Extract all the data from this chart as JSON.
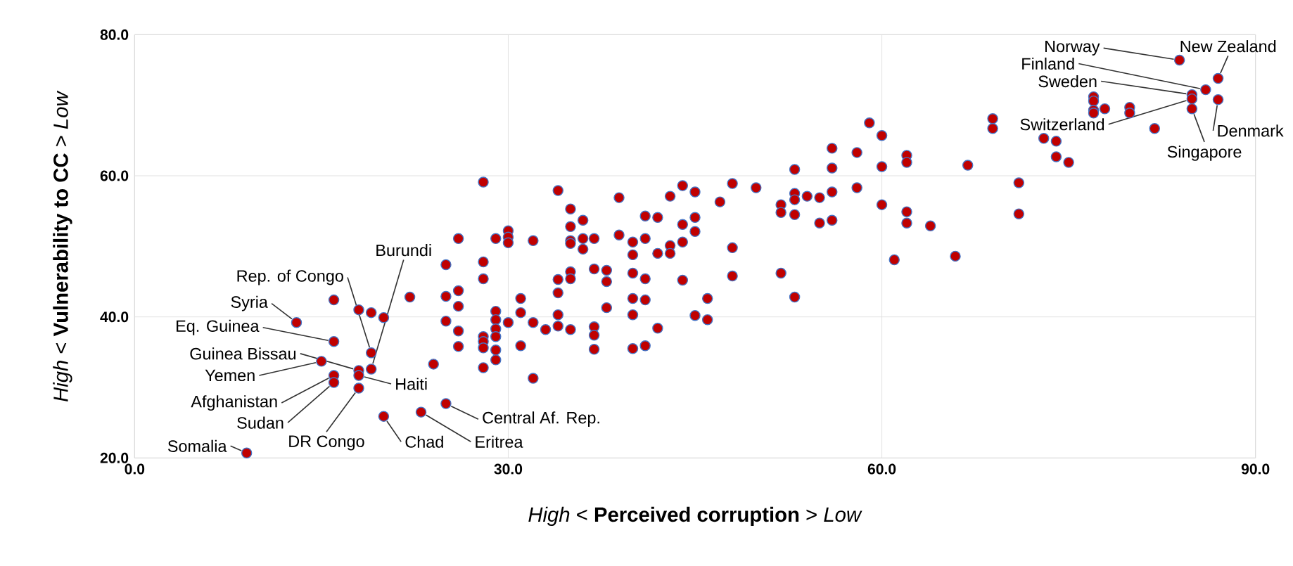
{
  "chart_data": {
    "type": "scatter",
    "xlabel": "*High* < **Perceived corruption** > *Low*",
    "ylabel": "*High* < **Vulnerability to CC** > *Low*",
    "xlim": [
      0,
      90
    ],
    "ylim": [
      20,
      80
    ],
    "xticks": [
      {
        "value": 0,
        "label": "0.0"
      },
      {
        "value": 30,
        "label": "30.0"
      },
      {
        "value": 60,
        "label": "60.0"
      },
      {
        "value": 90,
        "label": "90.0"
      }
    ],
    "yticks": [
      {
        "value": 20,
        "label": "20.0"
      },
      {
        "value": 40,
        "label": "40.0"
      },
      {
        "value": 60,
        "label": "60.0"
      },
      {
        "value": 80,
        "label": "80.0"
      }
    ],
    "grid": true,
    "marker": "circle",
    "color": "#c00000",
    "x": [
      9.0,
      13.0,
      16.0,
      15.0,
      16.0,
      16.0,
      18.0,
      18.0,
      18.0,
      19.0,
      19.0,
      20.0,
      23.0,
      25.0,
      16.0,
      18.0,
      19.0,
      20.0,
      22.1,
      24.0,
      25.0,
      28.0,
      28.0,
      25.0,
      26.0,
      26.0,
      25.0,
      26.0,
      26.0,
      28.0,
      28.0,
      28.0,
      28.0,
      29.0,
      29.0,
      29.0,
      29.0,
      29.0,
      29.0,
      30.0,
      31.0,
      31.0,
      32.0,
      31.0,
      32.0,
      33.0,
      34.0,
      34.0,
      34.0,
      34.0,
      35.0,
      35.0,
      35.0,
      36.9,
      36.9,
      36.9,
      36.9,
      37.9,
      37.9,
      37.9,
      40.0,
      40.0,
      40.0,
      40.0,
      41.0,
      41.0,
      41.0,
      42.0,
      44.0,
      45.0,
      46.0,
      46.0,
      48.0,
      51.9,
      53.0,
      61.0,
      30.0,
      30.0,
      30.0,
      32.0,
      34.0,
      35.0,
      35.0,
      35.0,
      35.0,
      36.0,
      36.0,
      36.0,
      36.9,
      38.9,
      38.9,
      40.0,
      40.0,
      41.0,
      41.0,
      42.0,
      42.0,
      43.0,
      43.0,
      43.0,
      44.0,
      44.0,
      44.0,
      45.0,
      45.0,
      45.0,
      47.0,
      48.0,
      48.0,
      49.9,
      51.9,
      51.9,
      53.0,
      53.0,
      53.0,
      53.0,
      54.0,
      55.0,
      55.0,
      56.0,
      56.0,
      56.0,
      56.0,
      58.0,
      58.0,
      59.0,
      60.0,
      60.0,
      60.0,
      28.0,
      26.0,
      29.0,
      62.0,
      62.0,
      62.0,
      62.0,
      63.9,
      65.9,
      66.9,
      68.9,
      68.9,
      71.0,
      71.0,
      73.0,
      74.0,
      74.0,
      75.0,
      77.0,
      77.0,
      77.0,
      77.0,
      77.9,
      79.9,
      79.9,
      81.9,
      83.9,
      86.0,
      84.9,
      84.9,
      87.0,
      87.0,
      84.9
    ],
    "values": [
      20.7,
      39.2,
      36.5,
      33.7,
      31.7,
      30.7,
      32.4,
      31.7,
      29.9,
      34.9,
      32.6,
      25.9,
      26.5,
      27.7,
      42.4,
      41.0,
      40.6,
      39.9,
      42.8,
      33.3,
      47.4,
      47.8,
      45.4,
      42.9,
      43.7,
      41.5,
      39.4,
      38.0,
      35.8,
      37.2,
      36.5,
      35.6,
      32.8,
      40.8,
      39.6,
      38.3,
      37.2,
      35.3,
      33.9,
      39.2,
      42.6,
      40.6,
      39.2,
      35.9,
      31.3,
      38.2,
      45.3,
      43.4,
      40.3,
      38.7,
      46.4,
      45.4,
      38.2,
      46.8,
      38.6,
      37.4,
      35.4,
      46.6,
      45.0,
      41.3,
      46.2,
      42.6,
      40.3,
      35.5,
      45.4,
      42.4,
      35.9,
      38.4,
      45.2,
      40.2,
      42.6,
      39.6,
      45.8,
      46.2,
      42.8,
      48.1,
      52.2,
      51.3,
      50.5,
      50.8,
      57.9,
      55.3,
      52.8,
      50.8,
      50.4,
      53.7,
      51.1,
      49.6,
      51.1,
      56.9,
      51.6,
      50.6,
      48.8,
      54.3,
      51.1,
      54.1,
      49.0,
      57.1,
      50.1,
      49.0,
      58.6,
      53.1,
      50.6,
      57.7,
      54.1,
      52.1,
      56.3,
      58.9,
      49.8,
      58.3,
      55.9,
      54.8,
      60.9,
      57.5,
      56.6,
      54.5,
      57.1,
      56.9,
      53.3,
      63.9,
      61.1,
      57.7,
      53.7,
      63.3,
      58.3,
      67.5,
      65.7,
      61.3,
      55.9,
      59.1,
      51.1,
      51.1,
      62.9,
      61.9,
      54.9,
      53.3,
      52.9,
      48.6,
      61.5,
      68.1,
      66.7,
      59.0,
      54.6,
      65.3,
      64.9,
      62.7,
      61.9,
      71.2,
      70.6,
      69.3,
      68.9,
      69.5,
      69.7,
      68.9,
      66.7,
      76.4,
      72.2,
      71.5,
      70.9,
      73.8,
      70.8,
      69.5
    ],
    "annotations": [
      {
        "text": "Somalia",
        "x": 9.0,
        "y": 20.7
      },
      {
        "text": "Syria",
        "x": 13.0,
        "y": 39.2
      },
      {
        "text": "Eq. Guinea",
        "x": 16.0,
        "y": 36.5
      },
      {
        "text": "Guinea Bissau",
        "x": 18.0,
        "y": 32.4
      },
      {
        "text": "Yemen",
        "x": 15.0,
        "y": 33.7
      },
      {
        "text": "Afghanistan",
        "x": 16.0,
        "y": 31.7
      },
      {
        "text": "Sudan",
        "x": 16.0,
        "y": 30.7
      },
      {
        "text": "DR Congo",
        "x": 18.0,
        "y": 29.9
      },
      {
        "text": "Haiti",
        "x": 18.0,
        "y": 31.7
      },
      {
        "text": "Rep. of Congo",
        "x": 19.0,
        "y": 34.9
      },
      {
        "text": "Burundi",
        "x": 19.0,
        "y": 32.6
      },
      {
        "text": "Chad",
        "x": 20.0,
        "y": 25.9
      },
      {
        "text": "Eritrea",
        "x": 23.0,
        "y": 26.5
      },
      {
        "text": "Central Af. Rep.",
        "x": 25.0,
        "y": 27.7
      },
      {
        "text": "Norway",
        "x": 83.9,
        "y": 76.4
      },
      {
        "text": "New Zealand",
        "x": 87.0,
        "y": 73.8
      },
      {
        "text": "Finland",
        "x": 86.0,
        "y": 72.2
      },
      {
        "text": "Sweden",
        "x": 84.9,
        "y": 71.5
      },
      {
        "text": "Switzerland",
        "x": 84.9,
        "y": 70.9
      },
      {
        "text": "Denmark",
        "x": 87.0,
        "y": 70.8
      },
      {
        "text": "Singapore",
        "x": 84.9,
        "y": 69.5
      }
    ]
  }
}
